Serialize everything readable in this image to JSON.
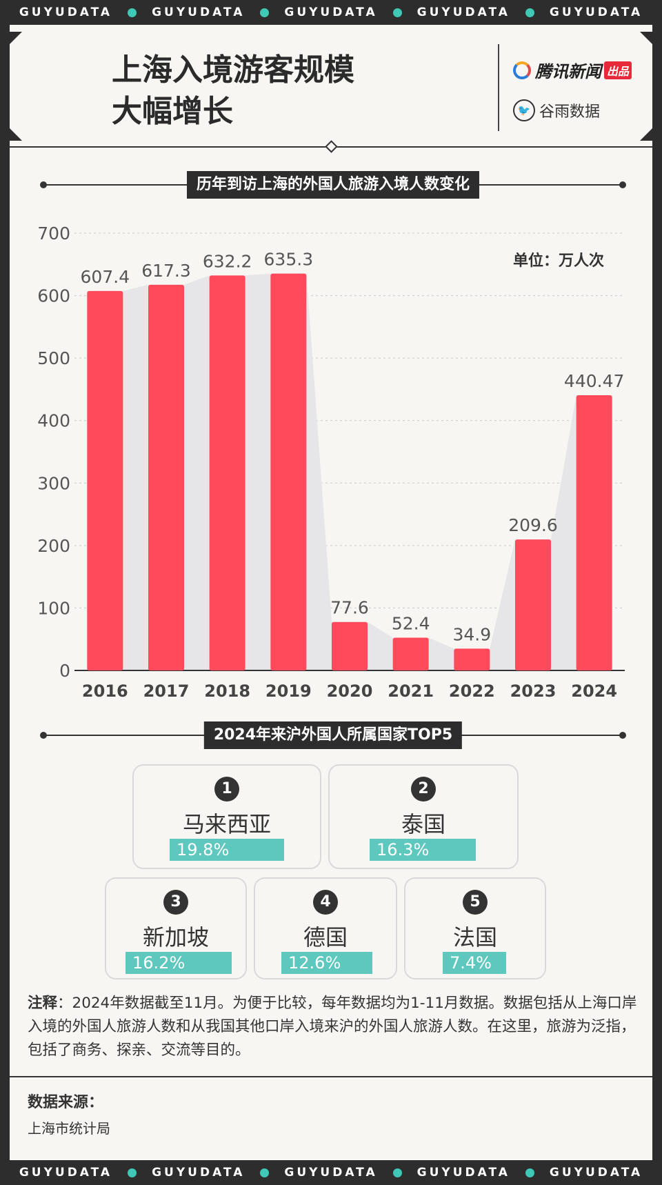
{
  "ribbon": {
    "text": "GUYUDATA",
    "repeat": 5
  },
  "header": {
    "title_line1": "上海入境游客规模",
    "title_line2": "大幅增长",
    "logo1_name": "腾讯新闻",
    "logo1_badge": "出品",
    "logo2_name": "谷雨数据"
  },
  "section1": {
    "label": "历年到访上海的外国人旅游入境人数变化"
  },
  "chart_data": {
    "type": "bar",
    "title": "历年到访上海的外国人旅游入境人数变化",
    "unit": "单位：万人次",
    "categories": [
      "2016",
      "2017",
      "2018",
      "2019",
      "2020",
      "2021",
      "2022",
      "2023",
      "2024"
    ],
    "values": [
      607.4,
      617.3,
      632.2,
      635.3,
      77.6,
      52.4,
      34.9,
      209.6,
      440.47
    ],
    "value_labels": [
      "607.4",
      "617.3",
      "632.2",
      "635.3",
      "77.6",
      "52.4",
      "34.9",
      "209.6",
      "440.47"
    ],
    "ylim": [
      0,
      700
    ],
    "yticks": [
      0,
      100,
      200,
      300,
      400,
      500,
      600,
      700
    ],
    "grid": true,
    "bar_color": "#ff4a5c",
    "area_color": "#e6e6e8"
  },
  "section2": {
    "label": "2024年来沪外国人所属国家TOP5"
  },
  "top5": [
    {
      "rank": "1",
      "country": "马来西亚",
      "pct_label": "19.8%",
      "pct": 19.8
    },
    {
      "rank": "2",
      "country": "泰国",
      "pct_label": "16.3%",
      "pct": 16.3
    },
    {
      "rank": "3",
      "country": "新加坡",
      "pct_label": "16.2%",
      "pct": 16.2
    },
    {
      "rank": "4",
      "country": "德国",
      "pct_label": "12.6%",
      "pct": 12.6
    },
    {
      "rank": "5",
      "country": "法国",
      "pct_label": "7.4%",
      "pct": 7.4
    }
  ],
  "accent_color": "#5ec8be",
  "note": {
    "label": "注释",
    "text": "：2024年数据截至11月。为便于比较，每年数据均为1-11月数据。数据包括从上海口岸入境的外国人旅游人数和从我国其他口岸入境来沪的外国人旅游人数。在这里，旅游为泛指，包括了商务、探亲、交流等目的。"
  },
  "source": {
    "title": "数据来源：",
    "text": "上海市统计局"
  }
}
